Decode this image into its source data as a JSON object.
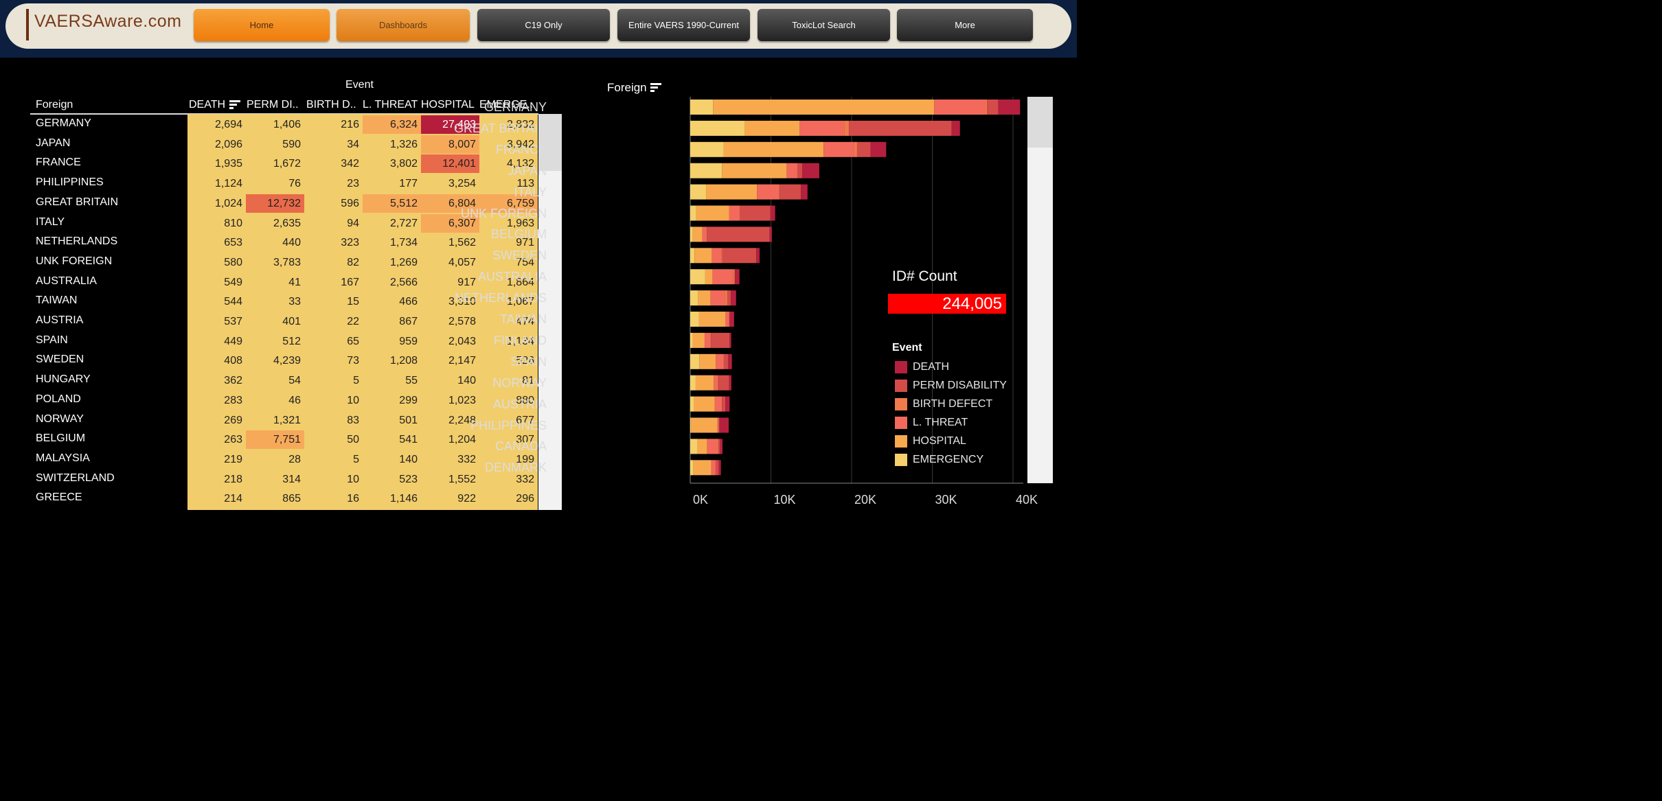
{
  "header": {
    "logo_text": "VAERSAware.com",
    "nav": [
      {
        "label": "Home"
      },
      {
        "label": "Dashboards"
      },
      {
        "label": "C19 Only"
      },
      {
        "label": "Entire VAERS 1990-Current"
      },
      {
        "label": "ToxicLot Search"
      },
      {
        "label": "More"
      }
    ]
  },
  "table": {
    "group_header": "Event",
    "row_header": "Foreign",
    "columns": [
      "DEATH",
      "PERM DI..",
      "BIRTH D..",
      "L. THREAT",
      "HOSPITAL",
      "EMERGE.."
    ],
    "rows": [
      {
        "country": "GERMANY",
        "values": [
          "2,694",
          "1,406",
          "216",
          "6,324",
          "27,403",
          "2,832"
        ]
      },
      {
        "country": "JAPAN",
        "values": [
          "2,096",
          "590",
          "34",
          "1,326",
          "8,007",
          "3,942"
        ]
      },
      {
        "country": "FRANCE",
        "values": [
          "1,935",
          "1,672",
          "342",
          "3,802",
          "12,401",
          "4,132"
        ]
      },
      {
        "country": "PHILIPPINES",
        "values": [
          "1,124",
          "76",
          "23",
          "177",
          "3,254",
          "113"
        ]
      },
      {
        "country": "GREAT BRITAIN",
        "values": [
          "1,024",
          "12,732",
          "596",
          "5,512",
          "6,804",
          "6,759"
        ]
      },
      {
        "country": "ITALY",
        "values": [
          "810",
          "2,635",
          "94",
          "2,727",
          "6,307",
          "1,963"
        ]
      },
      {
        "country": "NETHERLANDS",
        "values": [
          "653",
          "440",
          "323",
          "1,734",
          "1,562",
          "971"
        ]
      },
      {
        "country": "UNK FOREIGN",
        "values": [
          "580",
          "3,783",
          "82",
          "1,269",
          "4,057",
          "754"
        ]
      },
      {
        "country": "AUSTRALIA",
        "values": [
          "549",
          "41",
          "167",
          "2,566",
          "917",
          "1,864"
        ]
      },
      {
        "country": "TAIWAN",
        "values": [
          "544",
          "33",
          "15",
          "466",
          "3,310",
          "1,067"
        ]
      },
      {
        "country": "AUSTRIA",
        "values": [
          "537",
          "401",
          "22",
          "867",
          "2,578",
          "474"
        ]
      },
      {
        "country": "SPAIN",
        "values": [
          "449",
          "512",
          "65",
          "959",
          "2,043",
          "1,134"
        ]
      },
      {
        "country": "SWEDEN",
        "values": [
          "408",
          "4,239",
          "73",
          "1,208",
          "2,147",
          "526"
        ]
      },
      {
        "country": "HUNGARY",
        "values": [
          "362",
          "54",
          "5",
          "55",
          "140",
          "81"
        ]
      },
      {
        "country": "POLAND",
        "values": [
          "283",
          "46",
          "10",
          "299",
          "1,023",
          "880"
        ]
      },
      {
        "country": "NORWAY",
        "values": [
          "269",
          "1,321",
          "83",
          "501",
          "2,248",
          "677"
        ]
      },
      {
        "country": "BELGIUM",
        "values": [
          "263",
          "7,751",
          "50",
          "541",
          "1,204",
          "307"
        ]
      },
      {
        "country": "MALAYSIA",
        "values": [
          "219",
          "28",
          "5",
          "140",
          "332",
          "199"
        ]
      },
      {
        "country": "SWITZERLAND",
        "values": [
          "218",
          "314",
          "10",
          "523",
          "1,552",
          "332"
        ]
      },
      {
        "country": "GREECE",
        "values": [
          "214",
          "865",
          "16",
          "1,146",
          "922",
          "296"
        ]
      }
    ],
    "highlight_colors": {
      "base": "#f2cd6b",
      "light": "#f7a95a",
      "medium": "#e96a4a",
      "dark": "#b51d3c"
    }
  },
  "chart_header": "Foreign",
  "id_count": {
    "label": "ID# Count",
    "value": "244,005"
  },
  "legend": {
    "title": "Event",
    "items": [
      {
        "label": "DEATH",
        "color": "#b5203f"
      },
      {
        "label": "PERM DISABILITY",
        "color": "#d44c4a"
      },
      {
        "label": "BIRTH DEFECT",
        "color": "#ef7a4c"
      },
      {
        "label": "L. THREAT",
        "color": "#f36a5c"
      },
      {
        "label": "HOSPITAL",
        "color": "#f8a94e"
      },
      {
        "label": "EMERGENCY",
        "color": "#f5d06c"
      }
    ]
  },
  "chart_data": {
    "type": "bar",
    "orientation": "horizontal",
    "stacked": true,
    "xlim": [
      0,
      42000
    ],
    "x_ticks": [
      "0K",
      "10K",
      "20K",
      "30K",
      "40K"
    ],
    "categories": [
      "GERMANY",
      "GREAT BRITAIN",
      "FRANCE",
      "JAPAN",
      "ITALY",
      "UNK FOREIGN",
      "BELGIUM",
      "SWEDEN",
      "AUSTRALIA",
      "NETHERLANDS",
      "TAIWAN",
      "FINLAND",
      "SPAIN",
      "NORWAY",
      "AUSTRIA",
      "PHILIPPINES",
      "CANADA",
      "DENMARK"
    ],
    "series": [
      {
        "name": "EMERGENCY",
        "values": [
          2832,
          6759,
          4132,
          3942,
          1963,
          754,
          307,
          526,
          1864,
          971,
          1067,
          300,
          1134,
          677,
          474,
          113,
          900,
          400
        ]
      },
      {
        "name": "HOSPITAL",
        "values": [
          27403,
          6804,
          12401,
          8007,
          6307,
          4057,
          1204,
          2147,
          917,
          1562,
          3310,
          1500,
          2043,
          2248,
          2578,
          3254,
          1200,
          2200
        ]
      },
      {
        "name": "L. THREAT",
        "values": [
          6324,
          5512,
          3802,
          1326,
          2727,
          1269,
          541,
          1208,
          2566,
          1734,
          466,
          700,
          959,
          501,
          867,
          177,
          1300,
          500
        ]
      },
      {
        "name": "BIRTH DEFECT",
        "values": [
          216,
          596,
          342,
          34,
          94,
          82,
          50,
          73,
          167,
          323,
          15,
          80,
          65,
          83,
          22,
          23,
          100,
          50
        ]
      },
      {
        "name": "PERM DISABILITY",
        "values": [
          1406,
          12732,
          1672,
          590,
          2635,
          3783,
          7751,
          4239,
          41,
          440,
          33,
          2300,
          512,
          1321,
          401,
          76,
          200,
          400
        ]
      },
      {
        "name": "DEATH",
        "values": [
          2694,
          1024,
          1935,
          2096,
          810,
          580,
          263,
          408,
          549,
          653,
          544,
          200,
          449,
          269,
          537,
          1124,
          300,
          250
        ]
      }
    ]
  }
}
